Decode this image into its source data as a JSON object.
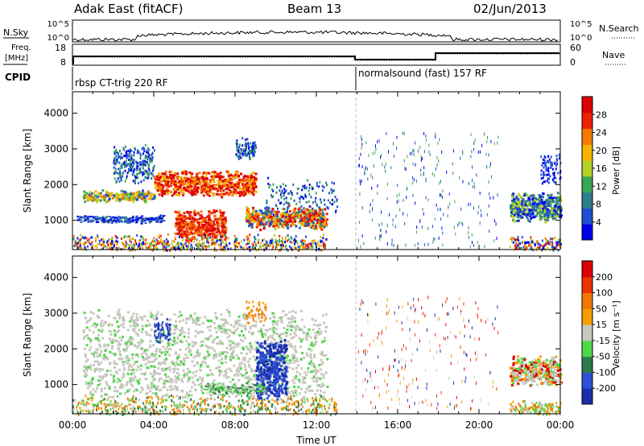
{
  "header": {
    "station": "Adak East (fitACF)",
    "beam": "Beam 13",
    "date": "02/Jun/2013"
  },
  "panels": {
    "nsky_label": "N.Sky",
    "nsearch_label": "N.Search",
    "nsky_ticks": [
      "10^5",
      "10^0"
    ],
    "nsearch_ticks": [
      "10^5",
      "10^0"
    ],
    "freq_label_line1": "Freq.",
    "freq_label_line2": "[MHz]",
    "freq_ticks": [
      "18",
      "8"
    ],
    "nave_label": "Nave",
    "nave_ticks": [
      "60",
      "0"
    ],
    "cpid_label": "CPID",
    "cpid_segments": [
      "rbsp CT-trig 220 RF",
      "normalsound (fast) 157 RF"
    ]
  },
  "chart_data": [
    {
      "type": "heatmap",
      "title": "",
      "xlabel": "",
      "ylabel": "Slant Range [km]",
      "xlim": [
        0,
        24
      ],
      "ylim": [
        180,
        4600
      ],
      "yticks": [
        "1000",
        "2000",
        "3000",
        "4000"
      ],
      "colorbar_label": "Power [dB]",
      "colorbar_ticks": [
        "28",
        "24",
        "20",
        "16",
        "12",
        "8",
        "4"
      ],
      "colors": [
        "#0000ee",
        "#1e50d0",
        "#2e7d8a",
        "#3aa655",
        "#b4d228",
        "#f5b400",
        "#f57a00",
        "#ee2200",
        "#dd0000"
      ]
    },
    {
      "type": "heatmap",
      "title": "",
      "xlabel": "Time UT",
      "ylabel": "Slant Range [km]",
      "xlim": [
        0,
        24
      ],
      "ylim": [
        180,
        4600
      ],
      "xticks": [
        "00:00",
        "04:00",
        "08:00",
        "12:00",
        "16:00",
        "20:00",
        "00:00"
      ],
      "yticks": [
        "1000",
        "2000",
        "3000",
        "4000"
      ],
      "colorbar_label": "Velocity [m s⁻¹]",
      "colorbar_ticks": [
        "200",
        "100",
        "50",
        "15",
        "-15",
        "-50",
        "-100",
        "-200"
      ],
      "colors": [
        "#1a2ea8",
        "#2d4fd6",
        "#2e7a4a",
        "#4fd64a",
        "#c8c8c0",
        "#f5a000",
        "#f07800",
        "#ee3300",
        "#dd0000"
      ]
    }
  ]
}
